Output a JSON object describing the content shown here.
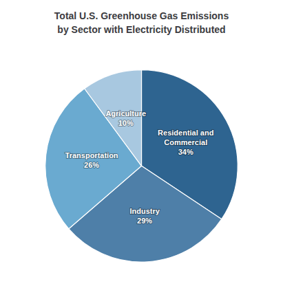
{
  "chart_data": {
    "type": "pie",
    "title": "Total U.S. Greenhouse Gas Emissions\nby Sector with Electricity Distributed",
    "categories": [
      "Residential and\nCommercial",
      "Industry",
      "Transportation",
      "Agriculture"
    ],
    "values": [
      34,
      29,
      26,
      10
    ],
    "value_labels": [
      "34%",
      "29%",
      "26%",
      "10%"
    ],
    "colors": [
      "#2e6490",
      "#4e7fa8",
      "#6aaad0",
      "#a8c8e0"
    ],
    "data_labels": true
  }
}
